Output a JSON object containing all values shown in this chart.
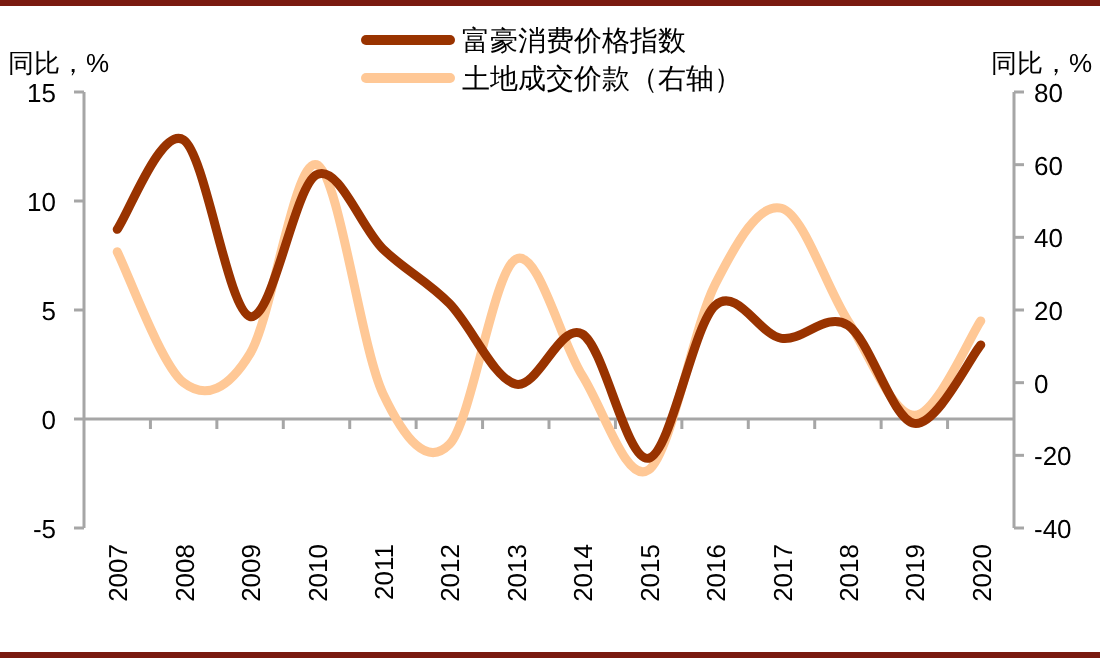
{
  "chart_data": {
    "type": "line",
    "ylabel": "同比，%",
    "y2label": "同比，%",
    "legend": "top",
    "categories": [
      "2007",
      "2008",
      "2009",
      "2010",
      "2011",
      "2012",
      "2013",
      "2014",
      "2015",
      "2016",
      "2017",
      "2018",
      "2019",
      "2020"
    ],
    "series": [
      {
        "name": "富豪消费价格指数",
        "color": "#993300",
        "values": [
          8.7,
          12.8,
          4.7,
          11.2,
          7.8,
          5.3,
          1.6,
          3.9,
          -1.8,
          5.2,
          3.7,
          4.3,
          -0.2,
          3.4
        ]
      },
      {
        "name": "土地成交价款（右轴）",
        "color": "#ffc896",
        "axis": "y2",
        "values": [
          36,
          0,
          8,
          60,
          -3,
          -17,
          34,
          2,
          -24,
          27,
          48,
          17,
          -9,
          17
        ]
      }
    ],
    "ylim": [
      -5,
      15
    ],
    "yticks": [
      -5,
      0,
      5,
      10,
      15
    ],
    "y2lim": [
      -40,
      80
    ],
    "y2ticks": [
      -40,
      -20,
      0,
      20,
      40,
      60,
      80
    ]
  }
}
